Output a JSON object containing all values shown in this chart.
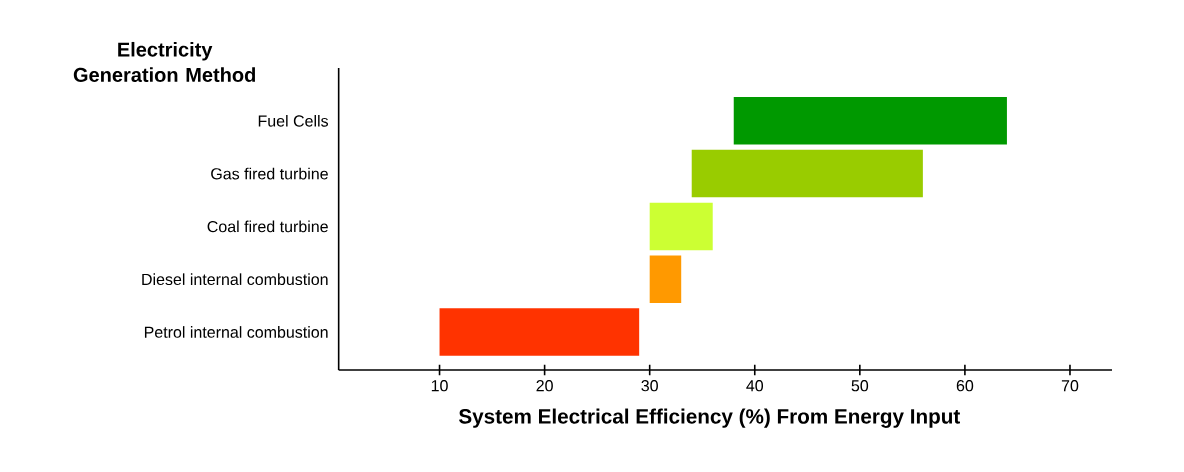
{
  "chart_data": {
    "type": "bar",
    "orientation": "horizontal",
    "ylabel": "Electricity Generation Method",
    "xlabel": "System Electrical Efficiency (%) From Energy Input",
    "categories": [
      "Fuel Cells",
      "Gas fired turbine",
      "Coal fired turbine",
      "Diesel internal combustion",
      "Petrol internal combustion"
    ],
    "base": [
      38,
      34,
      30,
      30,
      10
    ],
    "values": [
      26,
      22,
      6,
      3,
      19
    ],
    "colors": [
      "#009900",
      "#99cc00",
      "#ccff33",
      "#ff9900",
      "#ff3300"
    ],
    "xlim": [
      0.4,
      74
    ],
    "xticks": [
      10,
      20,
      30,
      40,
      50,
      60,
      70
    ]
  }
}
